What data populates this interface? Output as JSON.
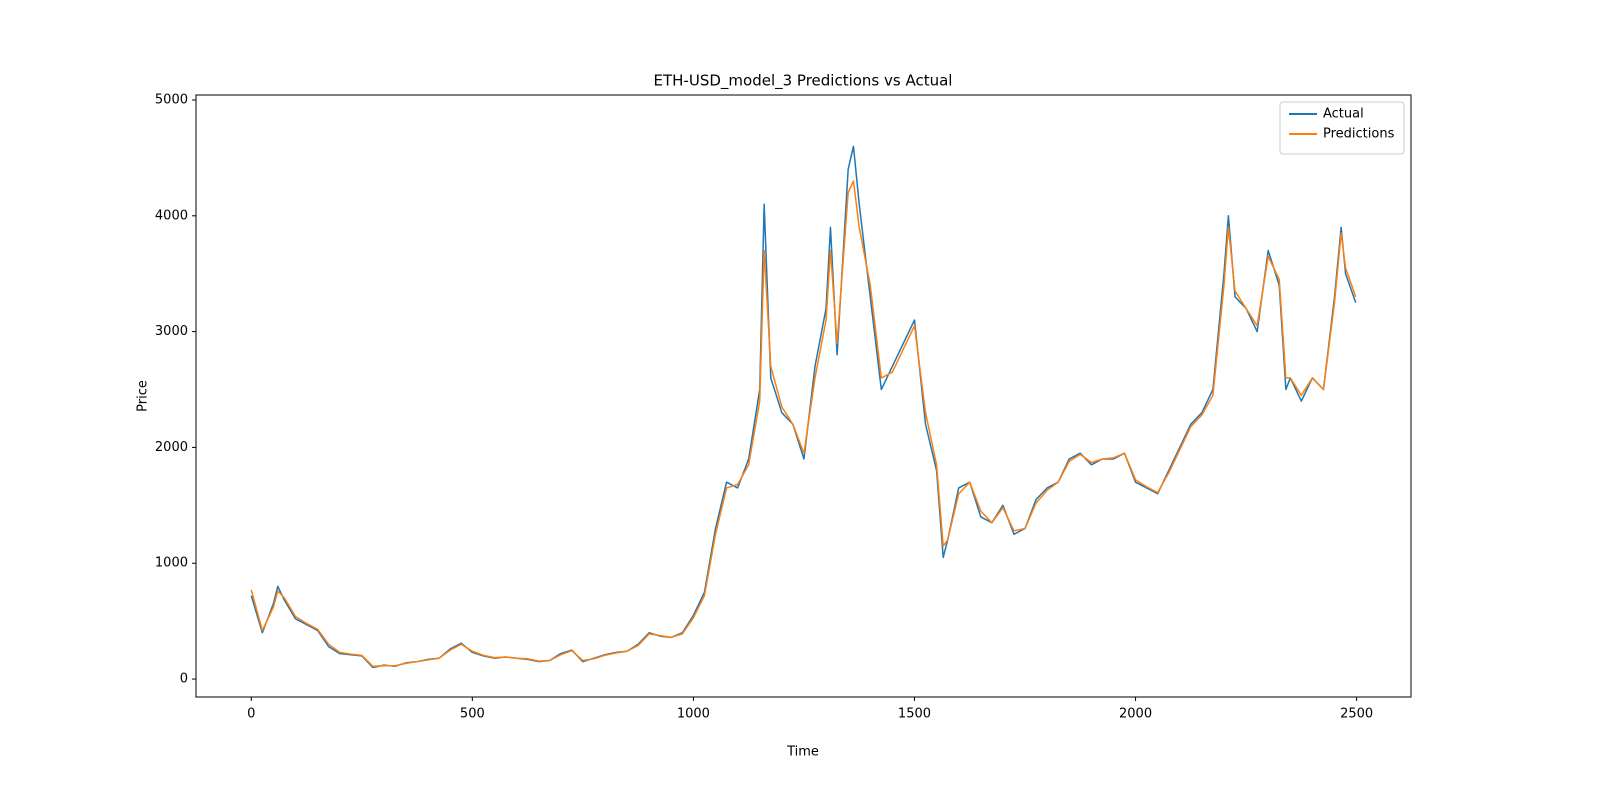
{
  "chart_data": {
    "type": "line",
    "title": "ETH-USD_model_3 Predictions vs Actual",
    "x_label": "Time",
    "y_label": "Price",
    "x": [
      0,
      25,
      50,
      60,
      75,
      100,
      125,
      150,
      175,
      200,
      225,
      250,
      275,
      300,
      325,
      350,
      375,
      400,
      425,
      450,
      475,
      500,
      525,
      550,
      575,
      600,
      625,
      650,
      675,
      700,
      725,
      750,
      775,
      800,
      825,
      850,
      875,
      900,
      925,
      950,
      975,
      1000,
      1025,
      1050,
      1075,
      1100,
      1125,
      1150,
      1160,
      1175,
      1200,
      1225,
      1250,
      1275,
      1300,
      1310,
      1325,
      1350,
      1362,
      1375,
      1400,
      1425,
      1450,
      1475,
      1500,
      1525,
      1550,
      1565,
      1575,
      1600,
      1625,
      1650,
      1675,
      1700,
      1725,
      1750,
      1775,
      1800,
      1825,
      1850,
      1875,
      1900,
      1925,
      1950,
      1975,
      2000,
      2025,
      2050,
      2075,
      2100,
      2125,
      2150,
      2175,
      2200,
      2210,
      2225,
      2250,
      2275,
      2300,
      2325,
      2340,
      2350,
      2375,
      2400,
      2425,
      2450,
      2465,
      2475,
      2498
    ],
    "series": [
      {
        "name": "Actual",
        "color": "#1f77b4",
        "values": [
          720,
          400,
          650,
          800,
          680,
          520,
          470,
          420,
          280,
          220,
          210,
          200,
          100,
          120,
          110,
          140,
          150,
          170,
          180,
          260,
          310,
          230,
          200,
          180,
          190,
          180,
          170,
          150,
          160,
          220,
          250,
          150,
          180,
          210,
          230,
          240,
          300,
          400,
          370,
          360,
          400,
          550,
          750,
          1300,
          1700,
          1650,
          1900,
          2500,
          4100,
          2600,
          2300,
          2200,
          1900,
          2700,
          3200,
          3900,
          2800,
          4400,
          4600,
          4100,
          3300,
          2500,
          2700,
          2900,
          3100,
          2200,
          1800,
          1050,
          1200,
          1650,
          1700,
          1400,
          1350,
          1500,
          1250,
          1300,
          1550,
          1650,
          1700,
          1900,
          1950,
          1850,
          1900,
          1900,
          1950,
          1700,
          1650,
          1600,
          1800,
          2000,
          2200,
          2300,
          2500,
          3500,
          4000,
          3300,
          3200,
          3000,
          3700,
          3400,
          2500,
          2600,
          2400,
          2600,
          2500,
          3300,
          3900,
          3500,
          3250
        ]
      },
      {
        "name": "Predictions",
        "color": "#ff7f0e",
        "values": [
          770,
          420,
          620,
          760,
          700,
          540,
          480,
          430,
          300,
          230,
          215,
          205,
          110,
          115,
          115,
          135,
          150,
          165,
          180,
          250,
          300,
          240,
          205,
          185,
          190,
          180,
          175,
          155,
          160,
          210,
          245,
          160,
          175,
          205,
          225,
          240,
          290,
          390,
          375,
          360,
          390,
          530,
          720,
          1250,
          1650,
          1680,
          1850,
          2400,
          3700,
          2700,
          2350,
          2200,
          1950,
          2600,
          3100,
          3700,
          2900,
          4200,
          4300,
          3900,
          3400,
          2600,
          2650,
          2850,
          3050,
          2300,
          1850,
          1150,
          1200,
          1600,
          1700,
          1450,
          1350,
          1480,
          1280,
          1300,
          1520,
          1630,
          1700,
          1880,
          1940,
          1870,
          1900,
          1910,
          1950,
          1720,
          1660,
          1610,
          1780,
          1980,
          2180,
          2280,
          2450,
          3400,
          3900,
          3350,
          3200,
          3050,
          3650,
          3450,
          2600,
          2600,
          2450,
          2600,
          2500,
          3250,
          3850,
          3550,
          3300
        ]
      }
    ],
    "xlim": [
      -125,
      2623
    ],
    "ylim": [
      -155,
      5043
    ],
    "xticks": [
      0,
      500,
      1000,
      1500,
      2000,
      2500
    ],
    "yticks": [
      0,
      1000,
      2000,
      3000,
      4000,
      5000
    ],
    "grid": false,
    "legend": "upper right"
  }
}
